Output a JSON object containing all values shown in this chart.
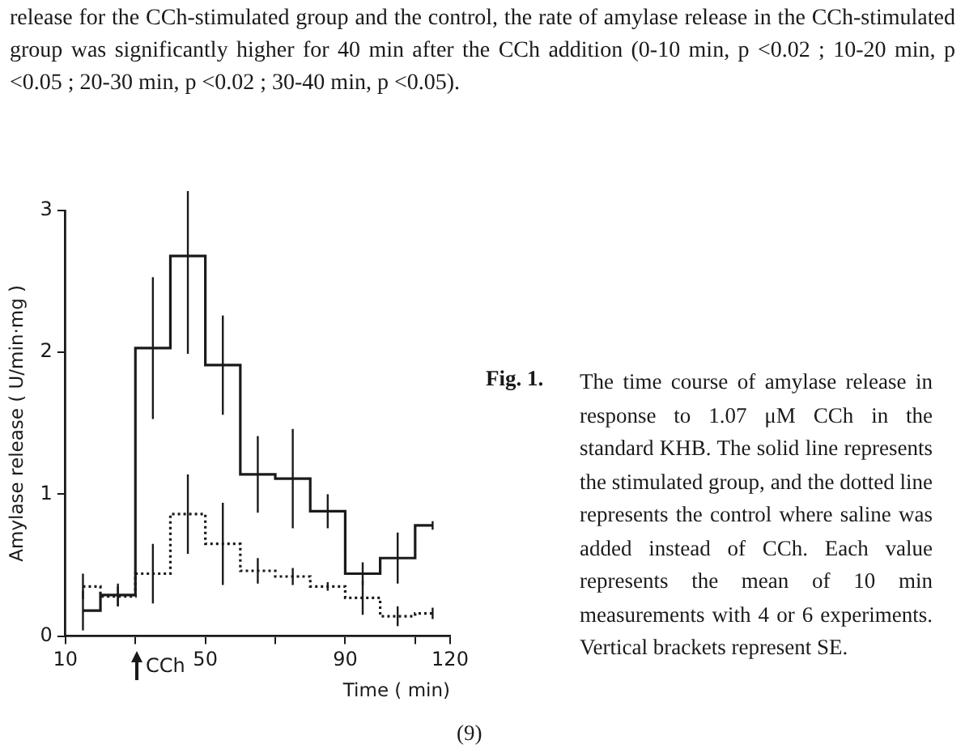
{
  "chart_data": {
    "type": "step",
    "xlabel": "Time ( min)",
    "ylabel": "Amylase release ( U/min·mg )",
    "x": [
      15,
      25,
      35,
      45,
      55,
      65,
      75,
      85,
      95,
      105,
      115
    ],
    "series": [
      {
        "color": "#1a1a1a",
        "line_style": "solid",
        "values": [
          0.18,
          0.29,
          2.03,
          2.68,
          1.91,
          1.14,
          1.11,
          0.88,
          0.44,
          0.55,
          0.78
        ],
        "errors": [
          0.14,
          0.08,
          0.5,
          0.69,
          0.35,
          0.27,
          0.35,
          0.12,
          0.08,
          0.18,
          0.03
        ]
      },
      {
        "color": "#1a1a1a",
        "line_style": "dotted",
        "values": [
          0.35,
          0.28,
          0.44,
          0.86,
          0.65,
          0.46,
          0.42,
          0.35,
          0.27,
          0.14,
          0.16
        ],
        "errors": [
          0.09,
          0.07,
          0.21,
          0.28,
          0.29,
          0.09,
          0.06,
          0.03,
          0.12,
          0.07,
          0.04
        ]
      }
    ],
    "xlim": [
      10,
      120
    ],
    "xticks": [
      10,
      {
        "value": 30,
        "label": null
      },
      50,
      {
        "value": 70,
        "label": null
      },
      90,
      {
        "value": 110,
        "label": null
      },
      120
    ],
    "ylim": [
      0,
      3
    ],
    "yticks": [
      0,
      1,
      2,
      3
    ],
    "grid": false,
    "legend": false,
    "marker": "none",
    "annotations": [
      "release for the CCh-stimulated group and the control, the rate of amylase release in the CCh-stimulated group was significantly higher for 40 min after the CCh addition (0-10 min, p <0.02 ; 10-20 min, p <0.05 ; 20-30 min, p <0.02 ; 30-40 min, p <0.05).",
      "Fig. 1.",
      "The time course of amylase release in response to 1.07 μM CCh in the standard KHB. The solid line represents the stimulated group, and the dotted line represents the control where saline was added instead of CCh. Each value represents the mean of 10 min measurements with 4 or 6 experiments. Vertical brackets represent SE.",
      "(9)",
      "CCh"
    ]
  }
}
